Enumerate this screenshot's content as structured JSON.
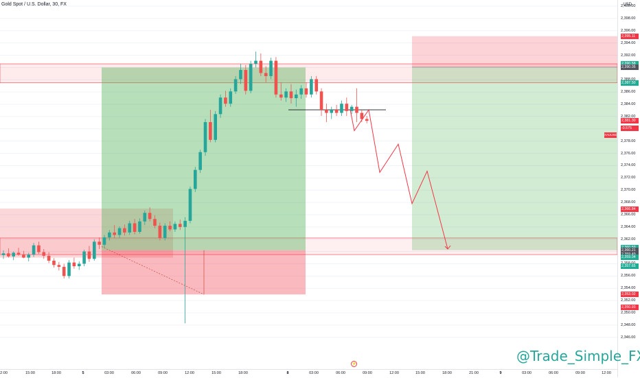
{
  "header": {
    "symbol_title": "Gold Spot / U.S. Dollar, 30, FX",
    "currency": "USD"
  },
  "price_axis": {
    "ticks": [
      "2,400.00",
      "2,398.00",
      "2,396.00",
      "2,394.00",
      "2,392.00",
      "2,390.00",
      "2,388.00",
      "2,386.00",
      "2,384.00",
      "2,382.00",
      "2,380.00",
      "2,378.00",
      "2,376.00",
      "2,374.00",
      "2,372.00",
      "2,370.00",
      "2,368.00",
      "2,366.00",
      "2,364.00",
      "2,362.00",
      "2,360.00",
      "2,358.00",
      "2,356.00",
      "2,354.00",
      "2,352.00",
      "2,350.00",
      "2,348.00",
      "2,346.00"
    ],
    "badges": [
      {
        "text": "2,395.11",
        "kind": "red"
      },
      {
        "text": "2,390.58",
        "kind": "green"
      },
      {
        "text": "2,390.05",
        "kind": "gray"
      },
      {
        "text": "2,387.50",
        "kind": "green"
      },
      {
        "text": "2,381.30",
        "kind": "red"
      },
      {
        "text": "-0.575",
        "kind": "red"
      },
      {
        "text": "2,366.84",
        "kind": "red"
      },
      {
        "text": "2,360.66",
        "kind": "green"
      },
      {
        "text": "2,360.59",
        "kind": "green"
      },
      {
        "text": "2,360.21",
        "kind": "gray"
      },
      {
        "text": "2,359.49",
        "kind": "gray"
      },
      {
        "text": "2,359.04",
        "kind": "green"
      },
      {
        "text": "2,357.66",
        "kind": "green"
      },
      {
        "text": "2,357.65",
        "kind": "green"
      },
      {
        "text": "2,353.02",
        "kind": "red"
      },
      {
        "text": "2,350.93",
        "kind": "red"
      }
    ],
    "xauusd_tag": "XAUUSD"
  },
  "time_axis": {
    "ticks": [
      "12:00",
      "15:00",
      "18:00",
      "5",
      "03:00",
      "06:00",
      "09:00",
      "12:00",
      "15:00",
      "18:00",
      "8",
      "03:00",
      "06:00",
      "09:00",
      "12:00",
      "15:00",
      "18:00",
      "21:00",
      "9",
      "03:00",
      "06:00",
      "09:00",
      "12:00"
    ]
  },
  "watermark": "@Trade_Simple_FX",
  "colors": {
    "bull": "#26a69a",
    "bear": "#ef5350",
    "green_badge": "#22ab94",
    "red_badge": "#f23645",
    "gray_badge": "#50535e",
    "projection": "#f23645"
  },
  "icons": {
    "goto_realtime": "lightning-icon"
  },
  "chart_data": {
    "type": "candlestick",
    "title": "Gold Spot / U.S. Dollar, 30, FX",
    "ylim": [
      2346,
      2401
    ],
    "candles": [
      {
        "o": 2359.4,
        "h": 2360.2,
        "l": 2358.8,
        "c": 2359.7
      },
      {
        "o": 2359.7,
        "h": 2360.5,
        "l": 2359.0,
        "c": 2359.2
      },
      {
        "o": 2359.2,
        "h": 2360.0,
        "l": 2358.6,
        "c": 2359.8
      },
      {
        "o": 2359.8,
        "h": 2360.6,
        "l": 2359.3,
        "c": 2359.5
      },
      {
        "o": 2359.5,
        "h": 2360.1,
        "l": 2358.9,
        "c": 2359.0
      },
      {
        "o": 2359.0,
        "h": 2359.8,
        "l": 2358.4,
        "c": 2359.5
      },
      {
        "o": 2359.5,
        "h": 2361.4,
        "l": 2359.1,
        "c": 2361.0
      },
      {
        "o": 2361.0,
        "h": 2361.6,
        "l": 2359.6,
        "c": 2359.9
      },
      {
        "o": 2359.9,
        "h": 2360.4,
        "l": 2358.8,
        "c": 2359.3
      },
      {
        "o": 2359.3,
        "h": 2359.9,
        "l": 2358.1,
        "c": 2358.5
      },
      {
        "o": 2358.5,
        "h": 2358.9,
        "l": 2357.4,
        "c": 2357.8
      },
      {
        "o": 2357.8,
        "h": 2358.3,
        "l": 2356.9,
        "c": 2357.5
      },
      {
        "o": 2357.5,
        "h": 2358.0,
        "l": 2355.6,
        "c": 2356.0
      },
      {
        "o": 2356.0,
        "h": 2358.6,
        "l": 2355.6,
        "c": 2358.2
      },
      {
        "o": 2358.2,
        "h": 2359.0,
        "l": 2357.2,
        "c": 2357.6
      },
      {
        "o": 2357.6,
        "h": 2358.4,
        "l": 2357.0,
        "c": 2358.0
      },
      {
        "o": 2358.0,
        "h": 2360.3,
        "l": 2357.6,
        "c": 2360.0
      },
      {
        "o": 2360.0,
        "h": 2360.9,
        "l": 2358.3,
        "c": 2358.8
      },
      {
        "o": 2358.8,
        "h": 2362.0,
        "l": 2358.5,
        "c": 2361.6
      },
      {
        "o": 2361.6,
        "h": 2362.3,
        "l": 2360.4,
        "c": 2361.1
      },
      {
        "o": 2361.1,
        "h": 2362.7,
        "l": 2360.6,
        "c": 2362.3
      },
      {
        "o": 2362.3,
        "h": 2363.5,
        "l": 2361.8,
        "c": 2363.1
      },
      {
        "o": 2363.1,
        "h": 2364.3,
        "l": 2362.2,
        "c": 2362.7
      },
      {
        "o": 2362.7,
        "h": 2364.1,
        "l": 2362.2,
        "c": 2363.8
      },
      {
        "o": 2363.8,
        "h": 2364.4,
        "l": 2362.6,
        "c": 2363.1
      },
      {
        "o": 2363.1,
        "h": 2365.0,
        "l": 2362.7,
        "c": 2364.6
      },
      {
        "o": 2364.6,
        "h": 2365.3,
        "l": 2362.8,
        "c": 2363.2
      },
      {
        "o": 2363.2,
        "h": 2365.4,
        "l": 2362.9,
        "c": 2364.9
      },
      {
        "o": 2364.9,
        "h": 2366.7,
        "l": 2364.3,
        "c": 2366.3
      },
      {
        "o": 2366.3,
        "h": 2367.2,
        "l": 2364.9,
        "c": 2365.3
      },
      {
        "o": 2365.3,
        "h": 2365.9,
        "l": 2363.8,
        "c": 2364.2
      },
      {
        "o": 2364.2,
        "h": 2364.7,
        "l": 2361.8,
        "c": 2362.2
      },
      {
        "o": 2362.2,
        "h": 2364.6,
        "l": 2361.8,
        "c": 2364.2
      },
      {
        "o": 2364.2,
        "h": 2364.9,
        "l": 2363.3,
        "c": 2363.6
      },
      {
        "o": 2363.6,
        "h": 2364.9,
        "l": 2363.2,
        "c": 2364.5
      },
      {
        "o": 2364.5,
        "h": 2365.2,
        "l": 2363.5,
        "c": 2364.0
      },
      {
        "o": 2364.0,
        "h": 2365.6,
        "l": 2348.3,
        "c": 2365.0
      },
      {
        "o": 2365.0,
        "h": 2370.6,
        "l": 2364.6,
        "c": 2370.2
      },
      {
        "o": 2370.2,
        "h": 2373.8,
        "l": 2369.7,
        "c": 2373.3
      },
      {
        "o": 2373.3,
        "h": 2376.6,
        "l": 2372.8,
        "c": 2376.2
      },
      {
        "o": 2376.2,
        "h": 2381.6,
        "l": 2375.6,
        "c": 2381.1
      },
      {
        "o": 2381.1,
        "h": 2383.1,
        "l": 2377.8,
        "c": 2378.2
      },
      {
        "o": 2378.2,
        "h": 2382.9,
        "l": 2377.8,
        "c": 2382.4
      },
      {
        "o": 2382.4,
        "h": 2385.6,
        "l": 2381.8,
        "c": 2385.1
      },
      {
        "o": 2385.1,
        "h": 2386.2,
        "l": 2383.6,
        "c": 2384.1
      },
      {
        "o": 2384.1,
        "h": 2386.6,
        "l": 2383.6,
        "c": 2386.1
      },
      {
        "o": 2386.1,
        "h": 2388.6,
        "l": 2385.7,
        "c": 2388.1
      },
      {
        "o": 2388.1,
        "h": 2390.6,
        "l": 2387.3,
        "c": 2389.6
      },
      {
        "o": 2389.6,
        "h": 2390.4,
        "l": 2385.6,
        "c": 2386.2
      },
      {
        "o": 2386.2,
        "h": 2391.1,
        "l": 2385.8,
        "c": 2390.6
      },
      {
        "o": 2390.6,
        "h": 2392.6,
        "l": 2390.0,
        "c": 2391.1
      },
      {
        "o": 2391.1,
        "h": 2392.3,
        "l": 2388.6,
        "c": 2389.1
      },
      {
        "o": 2389.1,
        "h": 2390.2,
        "l": 2387.6,
        "c": 2388.6
      },
      {
        "o": 2388.6,
        "h": 2391.6,
        "l": 2388.1,
        "c": 2391.1
      },
      {
        "o": 2391.1,
        "h": 2391.7,
        "l": 2385.1,
        "c": 2385.6
      },
      {
        "o": 2385.6,
        "h": 2387.6,
        "l": 2384.6,
        "c": 2385.1
      },
      {
        "o": 2385.1,
        "h": 2386.6,
        "l": 2384.4,
        "c": 2386.1
      },
      {
        "o": 2386.1,
        "h": 2387.3,
        "l": 2384.1,
        "c": 2385.0
      },
      {
        "o": 2385.0,
        "h": 2386.4,
        "l": 2383.6,
        "c": 2385.6
      },
      {
        "o": 2385.6,
        "h": 2387.1,
        "l": 2384.9,
        "c": 2386.6
      },
      {
        "o": 2386.6,
        "h": 2387.6,
        "l": 2385.1,
        "c": 2385.6
      },
      {
        "o": 2385.6,
        "h": 2388.6,
        "l": 2385.1,
        "c": 2388.1
      },
      {
        "o": 2388.1,
        "h": 2388.6,
        "l": 2385.6,
        "c": 2386.1
      },
      {
        "o": 2386.1,
        "h": 2386.6,
        "l": 2382.1,
        "c": 2383.1
      },
      {
        "o": 2383.1,
        "h": 2384.1,
        "l": 2381.1,
        "c": 2382.6
      },
      {
        "o": 2382.6,
        "h": 2383.6,
        "l": 2381.6,
        "c": 2383.1
      },
      {
        "o": 2383.1,
        "h": 2383.9,
        "l": 2382.1,
        "c": 2382.6
      },
      {
        "o": 2382.6,
        "h": 2384.6,
        "l": 2382.1,
        "c": 2384.1
      },
      {
        "o": 2384.1,
        "h": 2385.1,
        "l": 2382.1,
        "c": 2382.9
      },
      {
        "o": 2382.9,
        "h": 2383.9,
        "l": 2382.4,
        "c": 2383.6
      },
      {
        "o": 2383.6,
        "h": 2386.6,
        "l": 2381.1,
        "c": 2382.6
      },
      {
        "o": 2382.6,
        "h": 2383.1,
        "l": 2381.1,
        "c": 2381.6
      },
      {
        "o": 2381.6,
        "h": 2382.1,
        "l": 2380.9,
        "c": 2381.3
      }
    ],
    "zones": {
      "resistance_band": [
        2387.5,
        2390.6
      ],
      "support_band": [
        2359.5,
        2362.2
      ],
      "left_red_zone": [
        2359.0,
        2367.0
      ],
      "position_long": {
        "target": 2390.0,
        "entry": 2360.2,
        "stop": 2353.0
      },
      "position_short_tp": {
        "entry": 2390.05,
        "target": 2360.21,
        "stop": 2395.11
      }
    },
    "projection_path": [
      2383.1,
      2379.7,
      2383.1,
      2372.9,
      2377.5,
      2367.8,
      2373.1,
      2360.4
    ],
    "horizontal_line": 2383.1
  }
}
